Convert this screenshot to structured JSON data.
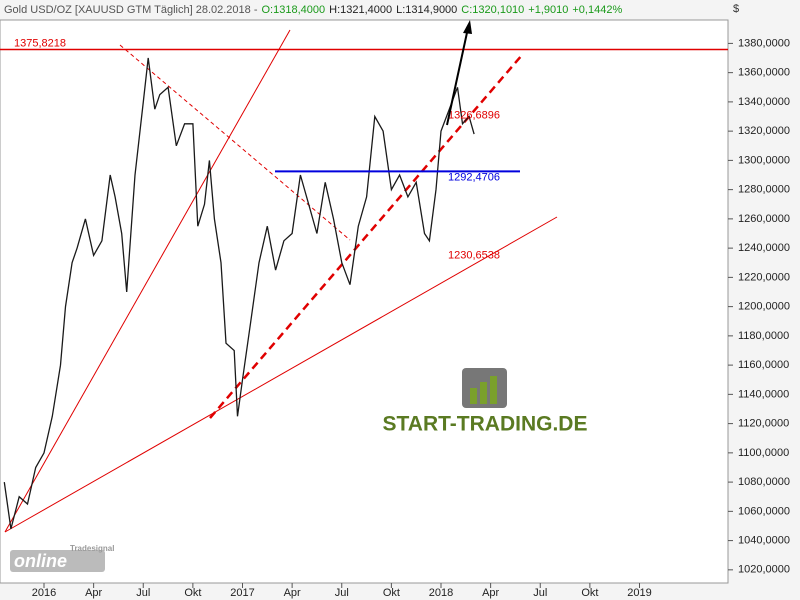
{
  "chart_data": {
    "type": "line",
    "title": [
      {
        "text": "Gold USD/OZ [XAUUSD GTM  Täglich] 28.02.2018 -",
        "color": "#555555"
      },
      {
        "text": "O:1318,4000",
        "color": "#1a9a1a"
      },
      {
        "text": "H:1321,4000",
        "color": "#222222"
      },
      {
        "text": "L:1314,9000",
        "color": "#222222"
      },
      {
        "text": "C:1320,1010",
        "color": "#1a9a1a"
      },
      {
        "text": "+1,9010",
        "color": "#1a9a1a"
      },
      {
        "text": "+0,1442%",
        "color": "#1a9a1a"
      }
    ],
    "y_axis_label": "$",
    "x": [
      -2.4,
      -2.0,
      -1.5,
      -1.0,
      -0.5,
      0,
      0.5,
      1,
      1.3,
      1.7,
      2,
      2.5,
      3,
      3.5,
      4,
      4.3,
      4.7,
      5,
      5.5,
      6,
      6.3,
      6.7,
      7,
      7.5,
      8,
      8.5,
      9,
      9.3,
      9.7,
      10,
      10.3,
      10.7,
      11,
      11.5,
      11.7,
      12,
      12.5,
      13,
      13.5,
      14,
      14.5,
      15,
      15.5,
      16,
      16.5,
      17,
      17.5,
      18,
      18.5,
      19,
      19.5,
      20,
      20.5,
      21,
      21.5,
      22,
      22.5,
      23,
      23.3,
      23.7,
      24,
      24.5,
      25,
      25.3,
      25.7,
      26
    ],
    "series": [
      {
        "name": "XAUUSD",
        "color": "#1a1a1a",
        "values": [
          1080,
          1048,
          1070,
          1065,
          1090,
          1100,
          1125,
          1160,
          1200,
          1230,
          1240,
          1260,
          1235,
          1245,
          1290,
          1275,
          1250,
          1210,
          1290,
          1340,
          1370,
          1335,
          1345,
          1350,
          1310,
          1325,
          1325,
          1255,
          1270,
          1300,
          1260,
          1230,
          1175,
          1170,
          1125,
          1150,
          1190,
          1230,
          1255,
          1225,
          1245,
          1250,
          1290,
          1270,
          1250,
          1285,
          1260,
          1230,
          1215,
          1255,
          1275,
          1330,
          1320,
          1280,
          1290,
          1275,
          1285,
          1250,
          1245,
          1280,
          1320,
          1335,
          1350,
          1325,
          1330,
          1318
        ]
      }
    ],
    "xlim": [
      -2.66,
      41.35
    ],
    "xticks": [
      {
        "value": 0,
        "label": "2016"
      },
      {
        "value": 3,
        "label": "Apr"
      },
      {
        "value": 6,
        "label": "Jul"
      },
      {
        "value": 9,
        "label": "Okt"
      },
      {
        "value": 12,
        "label": "2017"
      },
      {
        "value": 15,
        "label": "Apr"
      },
      {
        "value": 18,
        "label": "Jul"
      },
      {
        "value": 21,
        "label": "Okt"
      },
      {
        "value": 24,
        "label": "2018"
      },
      {
        "value": 27,
        "label": "Apr"
      },
      {
        "value": 30,
        "label": "Jul"
      },
      {
        "value": 33,
        "label": "Okt"
      },
      {
        "value": 36,
        "label": "2019"
      }
    ],
    "ylim": [
      1011,
      1396
    ],
    "yticks": [
      {
        "value": 1020,
        "label": "1020,0000"
      },
      {
        "value": 1040,
        "label": "1040,0000"
      },
      {
        "value": 1060,
        "label": "1060,0000"
      },
      {
        "value": 1080,
        "label": "1080,0000"
      },
      {
        "value": 1100,
        "label": "1100,0000"
      },
      {
        "value": 1120,
        "label": "1120,0000"
      },
      {
        "value": 1140,
        "label": "1140,0000"
      },
      {
        "value": 1160,
        "label": "1160,0000"
      },
      {
        "value": 1180,
        "label": "1180,0000"
      },
      {
        "value": 1200,
        "label": "1200,0000"
      },
      {
        "value": 1220,
        "label": "1220,0000"
      },
      {
        "value": 1240,
        "label": "1240,0000"
      },
      {
        "value": 1260,
        "label": "1260,0000"
      },
      {
        "value": 1280,
        "label": "1280,0000"
      },
      {
        "value": 1300,
        "label": "1300,0000"
      },
      {
        "value": 1320,
        "label": "1320,0000"
      },
      {
        "value": 1340,
        "label": "1340,0000"
      },
      {
        "value": 1360,
        "label": "1360,0000"
      },
      {
        "value": 1380,
        "label": "1380,0000"
      }
    ],
    "levels": [
      {
        "value": 1375.8218,
        "label": "1375,8218",
        "color": "#e00000"
      },
      {
        "value": 1292.4706,
        "label": "1292,4706",
        "color": "#0000dd"
      },
      {
        "value": 1326.6896,
        "label": "1326,6896",
        "color": "#e00000"
      },
      {
        "value": 1230.6538,
        "label": "1230,6538",
        "color": "#e00000"
      }
    ],
    "watermark": "START-TRADING.DE",
    "brand": [
      "Tradesignal",
      "online"
    ]
  }
}
